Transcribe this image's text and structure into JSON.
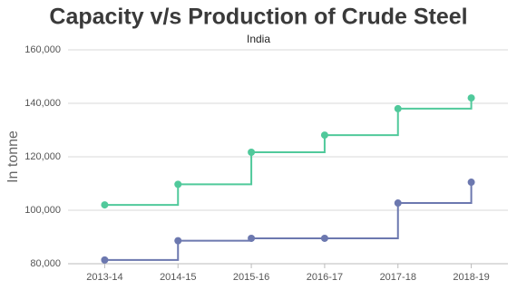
{
  "chart_data": {
    "type": "step-line",
    "title": "Capacity v/s Production of Crude Steel",
    "subtitle": "India",
    "y_label": "In tonne",
    "categories": [
      "2013-14",
      "2014-15",
      "2015-16",
      "2016-17",
      "2017-18",
      "2018-19"
    ],
    "series": [
      {
        "color": "#50c99b",
        "values": [
          102000,
          109700,
          121700,
          128100,
          138000,
          142000
        ]
      },
      {
        "color": "#6c78af",
        "values": [
          81400,
          88600,
          89500,
          89500,
          102700,
          110500
        ]
      }
    ],
    "ylim": [
      80000,
      160000
    ],
    "yticks": [
      {
        "value": 80000,
        "label": "80,000"
      },
      {
        "value": 100000,
        "label": "100,000"
      },
      {
        "value": 120000,
        "label": "120,000"
      },
      {
        "value": 140000,
        "label": "140,000"
      },
      {
        "value": 160000,
        "label": "160,000"
      }
    ],
    "grid": true
  }
}
